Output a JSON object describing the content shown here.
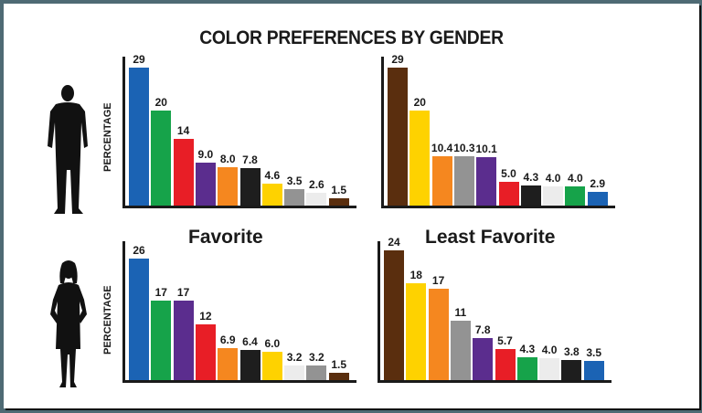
{
  "title": "COLOR PREFERENCES BY GENDER",
  "subtitles": {
    "favorite": "Favorite",
    "least_favorite": "Least Favorite"
  },
  "ylabel": "PERCENTAGE",
  "colors": {
    "blue": "#1b63b4",
    "green": "#16a34a",
    "red": "#e81e26",
    "purple": "#5b2d8e",
    "orange": "#f5871f",
    "black": "#1e1e1e",
    "yellow": "#fed200",
    "gray": "#939393",
    "white": "#ececec",
    "brown": "#5a2e0e"
  },
  "chart_data": [
    {
      "type": "bar",
      "title": "Favorite (Men)",
      "group": "Men",
      "ylabel": "PERCENTAGE",
      "categories": [
        "Blue",
        "Green",
        "Red",
        "Purple",
        "Orange",
        "Black",
        "Yellow",
        "Gray",
        "White",
        "Brown"
      ],
      "values": [
        29,
        20,
        14,
        9.0,
        8.0,
        7.8,
        4.6,
        3.5,
        2.6,
        1.5
      ],
      "labels": [
        "29",
        "20",
        "14",
        "9.0",
        "8.0",
        "7.8",
        "4.6",
        "3.5",
        "2.6",
        "1.5"
      ]
    },
    {
      "type": "bar",
      "title": "Least Favorite (Men)",
      "group": "Men",
      "ylabel": "",
      "categories": [
        "Brown",
        "Yellow",
        "Orange",
        "Gray",
        "Purple",
        "Red",
        "Black",
        "White",
        "Green",
        "Blue"
      ],
      "values": [
        29,
        20,
        10.4,
        10.3,
        10.1,
        5.0,
        4.3,
        4.0,
        4.0,
        2.9
      ],
      "labels": [
        "29",
        "20",
        "10.4",
        "10.3",
        "10.1",
        "5.0",
        "4.3",
        "4.0",
        "4.0",
        "2.9"
      ]
    },
    {
      "type": "bar",
      "title": "Favorite (Women)",
      "group": "Women",
      "ylabel": "PERCENTAGE",
      "categories": [
        "Blue",
        "Green",
        "Purple",
        "Red",
        "Orange",
        "Black",
        "Yellow",
        "White",
        "Gray",
        "Brown"
      ],
      "values": [
        26,
        17,
        17,
        12,
        6.9,
        6.4,
        6.0,
        3.2,
        3.2,
        1.5
      ],
      "labels": [
        "26",
        "17",
        "17",
        "12",
        "6.9",
        "6.4",
        "6.0",
        "3.2",
        "3.2",
        "1.5"
      ]
    },
    {
      "type": "bar",
      "title": "Least Favorite (Women)",
      "group": "Women",
      "ylabel": "",
      "categories": [
        "Brown",
        "Yellow",
        "Orange",
        "Gray",
        "Purple",
        "Red",
        "Green",
        "White",
        "Black",
        "Blue"
      ],
      "values": [
        24,
        18,
        17,
        11,
        7.8,
        5.7,
        4.3,
        4.0,
        3.8,
        3.5
      ],
      "labels": [
        "24",
        "18",
        "17",
        "11",
        "7.8",
        "5.7",
        "4.3",
        "4.0",
        "3.8",
        "3.5"
      ]
    }
  ]
}
